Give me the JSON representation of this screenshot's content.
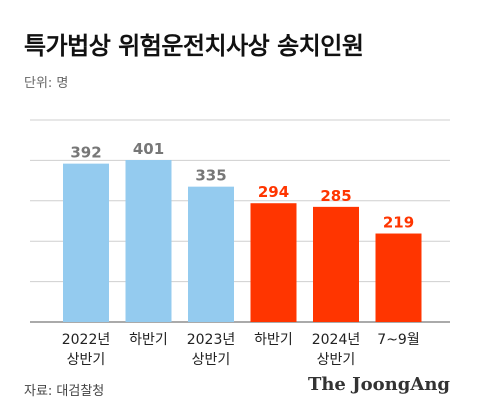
{
  "title": "특가법상 위험운전치사상 송치인원",
  "unit_label": "단위: 명",
  "source": "자료: 대검찰청",
  "brand": "The JoongAng",
  "chart_data": {
    "type": "bar",
    "categories": [
      [
        "2022년",
        "상반기"
      ],
      [
        "하반기"
      ],
      [
        "2023년",
        "상반기"
      ],
      [
        "하반기"
      ],
      [
        "2024년",
        "상반기"
      ],
      [
        "7~9월"
      ]
    ],
    "values": [
      392,
      401,
      335,
      294,
      285,
      219
    ],
    "value_labels": [
      "392",
      "401",
      "335",
      "294",
      "285",
      "219"
    ],
    "bar_colors": [
      "#94cbef",
      "#94cbef",
      "#94cbef",
      "#ff3500",
      "#ff3500",
      "#ff3500"
    ],
    "value_label_colors": [
      "#777777",
      "#777777",
      "#777777",
      "#ff3500",
      "#ff3500",
      "#ff3500"
    ],
    "ylim": [
      0,
      500
    ],
    "grid": true,
    "xlabel": "",
    "ylabel": ""
  }
}
